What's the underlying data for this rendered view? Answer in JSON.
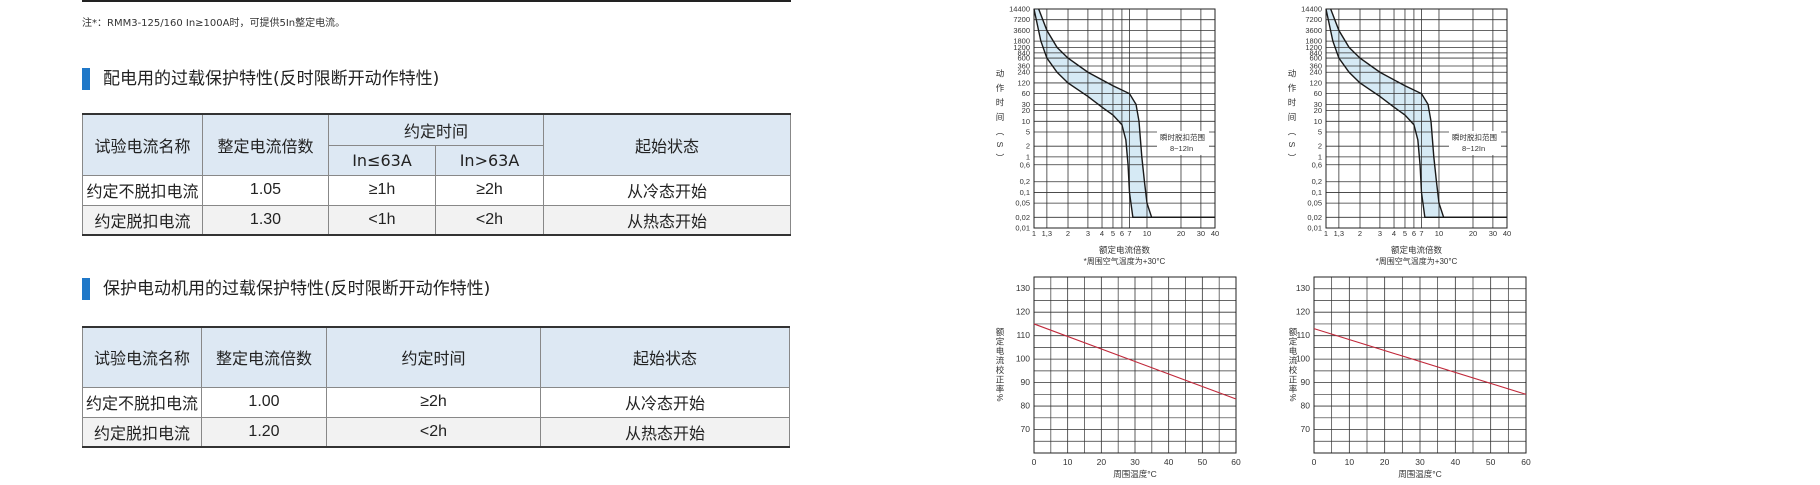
{
  "note": "注*：RMM3-125/160 In≥100A时，可提供5In整定电流。",
  "sections": [
    {
      "heading": "配电用的过载保护特性(反时限断开动作特性)",
      "table": {
        "header": [
          "试验电流名称",
          "整定电流倍数",
          "约定时间",
          "起始状态"
        ],
        "subheader": [
          "In≤63A",
          "In>63A"
        ],
        "rows": [
          [
            "约定不脱扣电流",
            "1.05",
            "≥1h",
            "≥2h",
            "从冷态开始"
          ],
          [
            "约定脱扣电流",
            "1.30",
            "<1h",
            "<2h",
            "从热态开始"
          ]
        ]
      }
    },
    {
      "heading": "保护电动机用的过载保护特性(反时限断开动作特性)",
      "table": {
        "header": [
          "试验电流名称",
          "整定电流倍数",
          "约定时间",
          "起始状态"
        ],
        "rows": [
          [
            "约定不脱扣电流",
            "1.00",
            "≥2h",
            "从冷态开始"
          ],
          [
            "约定脱扣电流",
            "1.20",
            "<2h",
            "从热态开始"
          ]
        ]
      }
    }
  ],
  "chart_data": [
    {
      "type": "line",
      "xlog": true,
      "ylog": true,
      "color": "#1a1a1a",
      "fill": "#d6eaf5",
      "ylabel": "动作时间（S）",
      "xlabel": "额定电流倍数",
      "xlabel_note": "*周围空气温度为+30°C",
      "annotation": [
        "瞬时脱扣范围",
        "8~12In"
      ],
      "xlim": [
        1,
        40
      ],
      "ylim": [
        0.01,
        14400
      ],
      "xticks": [
        1,
        {
          "value": 1.3,
          "label": "1,3"
        },
        2,
        3,
        4,
        5,
        6,
        7,
        10,
        20,
        30,
        40
      ],
      "yticks": [
        14400,
        7200,
        3600,
        1800,
        1200,
        840,
        600,
        360,
        240,
        120,
        60,
        30,
        20,
        10,
        5,
        2,
        1,
        {
          "value": 0.6,
          "label": "0,6"
        },
        {
          "value": 0.2,
          "label": "0,2"
        },
        {
          "value": 0.1,
          "label": "0,1"
        },
        {
          "value": 0.05,
          "label": "0,05"
        },
        {
          "value": 0.02,
          "label": "0,02"
        },
        {
          "value": 0.01,
          "label": "0,01"
        }
      ],
      "series": [
        {
          "x": [
            1.1,
            1.3,
            1.6,
            2,
            3,
            5,
            7,
            8,
            8.5,
            9,
            9.5,
            10,
            11,
            40
          ],
          "values": [
            14400,
            3600,
            1200,
            600,
            240,
            100,
            60,
            30,
            10,
            1,
            0.2,
            0.05,
            0.02,
            0.02
          ]
        },
        {
          "x": [
            1,
            1.15,
            1.3,
            1.6,
            2,
            3,
            4,
            5,
            6,
            6.5,
            6.8,
            7,
            7.5,
            40
          ],
          "values": [
            14400,
            1800,
            600,
            240,
            120,
            50,
            25,
            15,
            8,
            3,
            0.6,
            0.1,
            0.02,
            0.02
          ]
        }
      ]
    },
    {
      "type": "line",
      "xlog": true,
      "ylog": true,
      "color": "#1a1a1a",
      "fill": "#d6eaf5",
      "ylabel": "动作时间（S）",
      "xlabel": "额定电流倍数",
      "xlabel_note": "*周围空气温度为+30°C",
      "annotation": [
        "瞬时脱扣范围",
        "8~12In"
      ],
      "xlim": [
        1,
        40
      ],
      "ylim": [
        0.01,
        14400
      ],
      "xticks": [
        1,
        {
          "value": 1.3,
          "label": "1,3"
        },
        2,
        3,
        4,
        5,
        6,
        7,
        10,
        20,
        30,
        40
      ],
      "yticks": [
        14400,
        7200,
        3600,
        1800,
        1200,
        840,
        600,
        360,
        240,
        120,
        60,
        30,
        20,
        10,
        5,
        2,
        1,
        {
          "value": 0.6,
          "label": "0,6"
        },
        {
          "value": 0.2,
          "label": "0,2"
        },
        {
          "value": 0.1,
          "label": "0,1"
        },
        {
          "value": 0.05,
          "label": "0,05"
        },
        {
          "value": 0.02,
          "label": "0,02"
        },
        {
          "value": 0.01,
          "label": "0,01"
        }
      ],
      "series": [
        {
          "x": [
            1.1,
            1.3,
            1.6,
            2,
            3,
            5,
            7,
            8,
            8.5,
            9,
            9.5,
            10,
            11,
            40
          ],
          "values": [
            14400,
            3600,
            1200,
            600,
            240,
            100,
            60,
            30,
            10,
            1,
            0.2,
            0.05,
            0.02,
            0.02
          ]
        },
        {
          "x": [
            1,
            1.15,
            1.3,
            1.6,
            2,
            3,
            4,
            5,
            6,
            6.5,
            6.8,
            7,
            7.5,
            40
          ],
          "values": [
            14400,
            1800,
            600,
            240,
            120,
            50,
            25,
            15,
            8,
            3,
            0.6,
            0.1,
            0.02,
            0.02
          ]
        }
      ]
    },
    {
      "type": "line",
      "color": "#c0283a",
      "ylabel": "额定电流校正率%",
      "xlabel": "周围温度°C",
      "xlim": [
        0,
        60
      ],
      "ylim": [
        60,
        135
      ],
      "xticks": [
        0,
        10,
        20,
        30,
        40,
        50,
        60
      ],
      "yticks": [
        70,
        80,
        90,
        100,
        110,
        120,
        130
      ],
      "series": [
        {
          "x": [
            0,
            60
          ],
          "values": [
            115,
            83
          ]
        }
      ]
    },
    {
      "type": "line",
      "color": "#c0283a",
      "ylabel": "额定电流校正率%",
      "xlabel": "周围温度°C",
      "xlim": [
        0,
        60
      ],
      "ylim": [
        60,
        135
      ],
      "xticks": [
        0,
        10,
        20,
        30,
        40,
        50,
        60
      ],
      "yticks": [
        70,
        80,
        90,
        100,
        110,
        120,
        130
      ],
      "series": [
        {
          "x": [
            0,
            60
          ],
          "values": [
            113,
            85
          ]
        }
      ]
    }
  ]
}
